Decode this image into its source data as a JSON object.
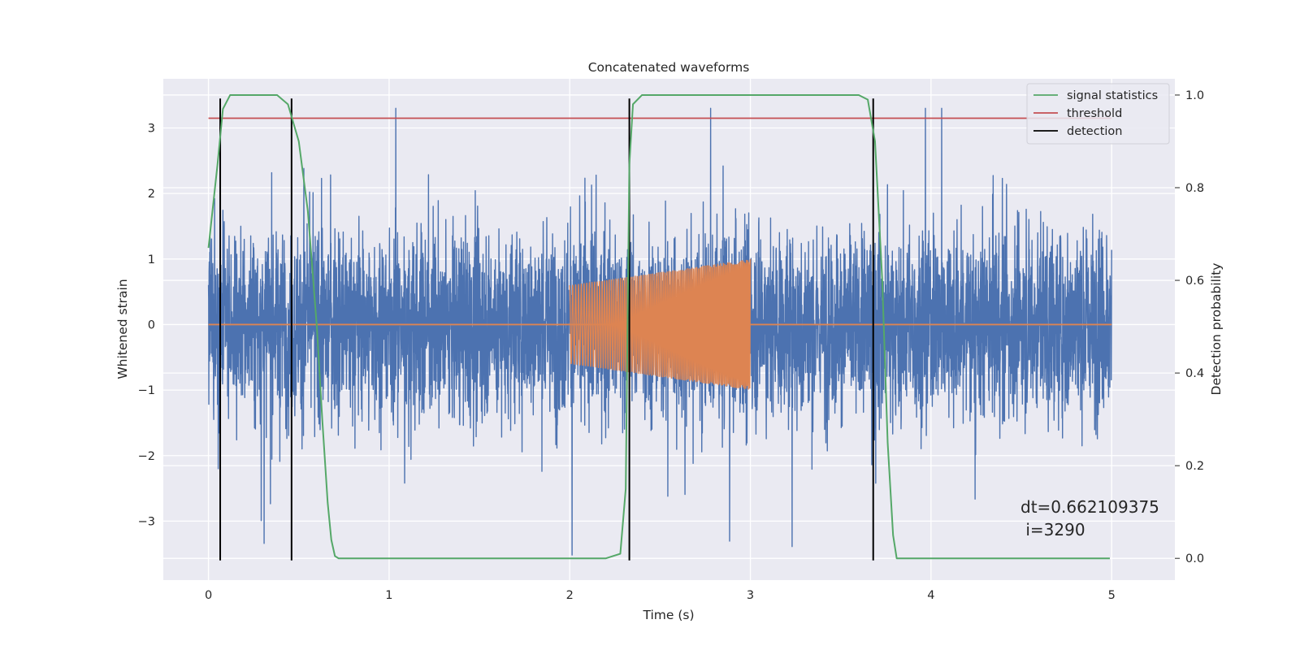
{
  "chart_data": {
    "type": "line",
    "title": "Concatenated waveforms",
    "xlabel": "Time (s)",
    "ylabel": "Whitened strain",
    "y2label": "Detection probability",
    "xlim": [
      -0.25,
      5.35
    ],
    "ylim": [
      -3.9,
      3.75
    ],
    "y2lim": [
      -0.047,
      1.035
    ],
    "xticks": [
      0,
      1,
      2,
      3,
      4,
      5
    ],
    "yticks": [
      -3,
      -2,
      -1,
      0,
      1,
      2,
      3
    ],
    "y2ticks": [
      0.0,
      0.2,
      0.4,
      0.6,
      0.8,
      1.0
    ],
    "xtick_labels": [
      "0",
      "1",
      "2",
      "3",
      "4",
      "5"
    ],
    "ytick_labels": [
      "−3",
      "−2",
      "−1",
      "0",
      "1",
      "2",
      "3"
    ],
    "y2tick_labels": [
      "0.0",
      "0.2",
      "0.4",
      "0.6",
      "0.8",
      "1.0"
    ],
    "grid": true,
    "background": "#eaeaf2",
    "legend_position": "top-right",
    "legend": [
      {
        "label": "signal statistics",
        "color": "#55a868"
      },
      {
        "label": "threshold",
        "color": "#c44e52"
      },
      {
        "label": "detection",
        "color": "#000000"
      }
    ],
    "noise_series": {
      "color": "#4c72b0",
      "x_range": [
        0,
        5
      ],
      "typical_amplitude": 1.0,
      "max_amplitude": 3.3
    },
    "chirp_series": {
      "color": "#dd8452",
      "x_range": [
        2.0,
        3.0
      ],
      "amplitude_start": 0.6,
      "amplitude_end": 1.0,
      "flat_value": 0
    },
    "signal_statistics": {
      "axis": "right",
      "x": [
        0,
        0.05,
        0.08,
        0.12,
        0.2,
        0.38,
        0.44,
        0.5,
        0.55,
        0.6,
        0.63,
        0.66,
        0.68,
        0.7,
        0.72,
        2.2,
        2.28,
        2.31,
        2.33,
        2.35,
        2.4,
        3.6,
        3.65,
        3.69,
        3.73,
        3.76,
        3.79,
        3.81,
        4.99
      ],
      "y": [
        0.67,
        0.85,
        0.97,
        1.0,
        1.0,
        1.0,
        0.98,
        0.9,
        0.75,
        0.5,
        0.3,
        0.12,
        0.04,
        0.005,
        0.0,
        0.0,
        0.01,
        0.15,
        0.85,
        0.98,
        1.0,
        1.0,
        0.99,
        0.9,
        0.6,
        0.25,
        0.05,
        0.0,
        0.0
      ]
    },
    "threshold": {
      "axis": "right",
      "value": 0.95,
      "x_range": [
        0,
        5
      ]
    },
    "detections": {
      "x": [
        0.065,
        0.46,
        2.33,
        3.68
      ],
      "y_range": [
        -3.6,
        3.45
      ]
    },
    "annotation": {
      "lines": [
        "dt=0.662109375",
        " i=3290"
      ],
      "x": 4.5,
      "y": -2.9
    }
  }
}
